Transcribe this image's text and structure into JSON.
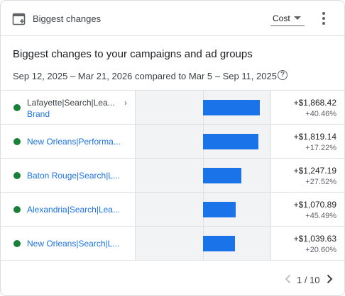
{
  "header": {
    "title": "Biggest changes",
    "icon": "add-chart-icon",
    "metric_select": {
      "value": "Cost"
    },
    "menu_icon": "more-vert-icon"
  },
  "main": {
    "title": "Biggest changes to your campaigns and ad groups",
    "date_range": "Sep 12, 2025 – Mar 21, 2026 compared to Mar 5 – Sep 11, 2025",
    "help_icon": "help-circle-icon"
  },
  "rows": [
    {
      "name": "Lafayette|Search|Lea...",
      "sub": "Brand",
      "change": "+$1,868.42",
      "pct": "+40.46%",
      "bar_fraction": 1.0,
      "status_color": "#188038"
    },
    {
      "name": "New Orleans|Performa...",
      "sub": "",
      "change": "+$1,819.14",
      "pct": "+17.22%",
      "bar_fraction": 0.97,
      "status_color": "#188038"
    },
    {
      "name": "Baton Rouge|Search|L...",
      "sub": "",
      "change": "+$1,247.19",
      "pct": "+27.52%",
      "bar_fraction": 0.67,
      "status_color": "#188038"
    },
    {
      "name": "Alexandria|Search|Lea...",
      "sub": "",
      "change": "+$1,070.89",
      "pct": "+45.49%",
      "bar_fraction": 0.57,
      "status_color": "#188038"
    },
    {
      "name": "New Orleans|Search|L...",
      "sub": "",
      "change": "+$1,039.63",
      "pct": "+20.60%",
      "bar_fraction": 0.56,
      "status_color": "#188038"
    }
  ],
  "pager": {
    "text": "1 / 10",
    "prev_icon": "chevron-left-icon",
    "next_icon": "chevron-right-icon"
  },
  "colors": {
    "bar": "#1a73e8",
    "link": "#1a73e8",
    "status_enabled": "#188038"
  }
}
